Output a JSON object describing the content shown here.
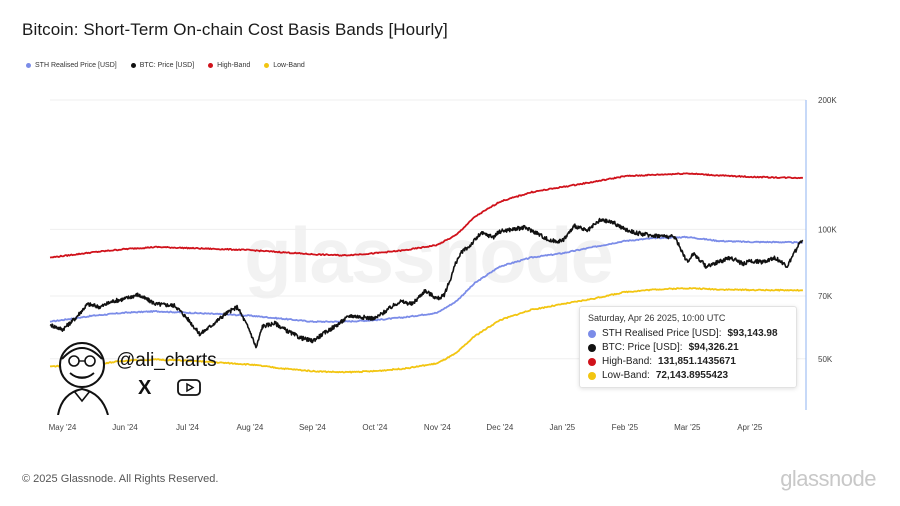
{
  "chart_data": {
    "type": "line",
    "title": "Bitcoin: Short-Term On-chain Cost Basis Bands [Hourly]",
    "xlabel": "",
    "ylabel": "",
    "y_scale": "log",
    "ylim": [
      38000,
      200000
    ],
    "y_ticks": [
      {
        "label": "200K",
        "value": 200000
      },
      {
        "label": "100K",
        "value": 100000
      },
      {
        "label": "70K",
        "value": 70000
      },
      {
        "label": "50K",
        "value": 50000
      }
    ],
    "x_ticks": [
      {
        "label": "May '24",
        "t": 0.0
      },
      {
        "label": "Jun '24",
        "t": 1.0
      },
      {
        "label": "Jul '24",
        "t": 2.0
      },
      {
        "label": "Aug '24",
        "t": 3.0
      },
      {
        "label": "Sep '24",
        "t": 4.0
      },
      {
        "label": "Oct '24",
        "t": 5.0
      },
      {
        "label": "Nov '24",
        "t": 6.0
      },
      {
        "label": "Dec '24",
        "t": 7.0
      },
      {
        "label": "Jan '25",
        "t": 8.0
      },
      {
        "label": "Feb '25",
        "t": 9.0
      },
      {
        "label": "Mar '25",
        "t": 10.0
      },
      {
        "label": "Apr '25",
        "t": 11.0
      }
    ],
    "x_range": [
      -0.2,
      11.9
    ],
    "series": [
      {
        "name": "STH Realised Price [USD]",
        "color": "#7b8ce8",
        "x": [
          -0.2,
          0.5,
          1.0,
          1.5,
          2.0,
          2.5,
          3.0,
          3.5,
          4.0,
          4.5,
          5.0,
          5.5,
          6.0,
          6.3,
          6.6,
          7.0,
          7.5,
          8.0,
          8.5,
          9.0,
          9.5,
          10.0,
          10.5,
          11.0,
          11.5,
          11.85
        ],
        "values": [
          61000,
          63000,
          64000,
          64500,
          64000,
          63500,
          63000,
          62000,
          61000,
          61000,
          61500,
          62500,
          64000,
          68000,
          75000,
          82000,
          86000,
          88000,
          91000,
          94000,
          95500,
          96000,
          94000,
          93500,
          93400,
          93144
        ]
      },
      {
        "name": "BTC: Price [USD]",
        "color": "#111111",
        "x": [
          -0.2,
          0.0,
          0.2,
          0.4,
          0.6,
          0.8,
          1.0,
          1.2,
          1.5,
          1.8,
          2.0,
          2.2,
          2.4,
          2.6,
          2.8,
          3.0,
          3.1,
          3.2,
          3.4,
          3.6,
          3.8,
          4.0,
          4.2,
          4.4,
          4.6,
          4.8,
          5.0,
          5.2,
          5.4,
          5.6,
          5.8,
          6.0,
          6.1,
          6.2,
          6.3,
          6.4,
          6.5,
          6.7,
          6.9,
          7.0,
          7.2,
          7.4,
          7.6,
          7.8,
          8.0,
          8.2,
          8.4,
          8.6,
          8.8,
          9.0,
          9.2,
          9.4,
          9.6,
          9.8,
          10.0,
          10.1,
          10.3,
          10.5,
          10.7,
          10.9,
          11.0,
          11.2,
          11.4,
          11.6,
          11.8,
          11.85
        ],
        "values": [
          60000,
          58500,
          62000,
          67000,
          66000,
          68000,
          69000,
          70500,
          67000,
          66500,
          62000,
          57000,
          60000,
          63500,
          66000,
          58000,
          53000,
          59500,
          60500,
          58000,
          56000,
          55000,
          57500,
          60000,
          63000,
          62500,
          62000,
          65000,
          68000,
          67000,
          72000,
          69000,
          70000,
          76000,
          84000,
          89000,
          91000,
          98000,
          96000,
          99000,
          100000,
          101000,
          98000,
          94000,
          94000,
          102000,
          99000,
          105000,
          104000,
          100000,
          98000,
          97000,
          96500,
          96000,
          84000,
          88000,
          82000,
          84000,
          86000,
          83000,
          84500,
          84000,
          86000,
          82000,
          93000,
          94326
        ]
      },
      {
        "name": "High-Band",
        "color": "#d0121b",
        "x": [
          -0.2,
          0.5,
          1.0,
          1.5,
          2.0,
          2.5,
          3.0,
          3.5,
          4.0,
          4.5,
          5.0,
          5.5,
          6.0,
          6.3,
          6.6,
          7.0,
          7.5,
          8.0,
          8.5,
          9.0,
          9.5,
          10.0,
          10.5,
          11.0,
          11.5,
          11.85
        ],
        "values": [
          86000,
          88500,
          90000,
          91000,
          90500,
          90000,
          89500,
          88500,
          87500,
          87000,
          88000,
          89500,
          92000,
          97000,
          107000,
          116000,
          122000,
          125500,
          129000,
          133000,
          134000,
          135000,
          133500,
          132500,
          132000,
          131851
        ]
      },
      {
        "name": "Low-Band",
        "color": "#f2c511",
        "x": [
          -0.2,
          0.5,
          1.0,
          1.5,
          2.0,
          2.5,
          3.0,
          3.5,
          4.0,
          4.5,
          5.0,
          5.5,
          6.0,
          6.3,
          6.6,
          7.0,
          7.5,
          8.0,
          8.5,
          9.0,
          9.5,
          10.0,
          10.5,
          11.0,
          11.5,
          11.85
        ],
        "values": [
          48000,
          48500,
          49500,
          49800,
          49500,
          49000,
          48500,
          47500,
          46800,
          46500,
          46800,
          47500,
          48800,
          51500,
          56500,
          61500,
          65000,
          67000,
          69000,
          71500,
          72500,
          73000,
          72500,
          72300,
          72200,
          72144
        ]
      }
    ]
  },
  "legend": [
    {
      "label": "STH Realised Price [USD]",
      "color": "#7b8ce8"
    },
    {
      "label": "BTC: Price [USD]",
      "color": "#111111"
    },
    {
      "label": "High-Band",
      "color": "#d0121b"
    },
    {
      "label": "Low-Band",
      "color": "#f2c511"
    }
  ],
  "watermark": "glassnode",
  "tooltip": {
    "date": "Saturday, Apr 26 2025, 10:00 UTC",
    "rows": [
      {
        "label": "STH Realised Price [USD]:",
        "value": "$93,143.98",
        "color": "#7b8ce8"
      },
      {
        "label": "BTC: Price [USD]:",
        "value": "$94,326.21",
        "color": "#111111"
      },
      {
        "label": "High-Band:",
        "value": "131,851.1435671",
        "color": "#d0121b"
      },
      {
        "label": "Low-Band:",
        "value": "72,143.8955423",
        "color": "#f2c511"
      }
    ]
  },
  "branding": {
    "handle": "@ali_charts",
    "x_glyph": "X"
  },
  "footer": {
    "copyright": "© 2025 Glassnode. All Rights Reserved.",
    "brand": "glassnode"
  }
}
